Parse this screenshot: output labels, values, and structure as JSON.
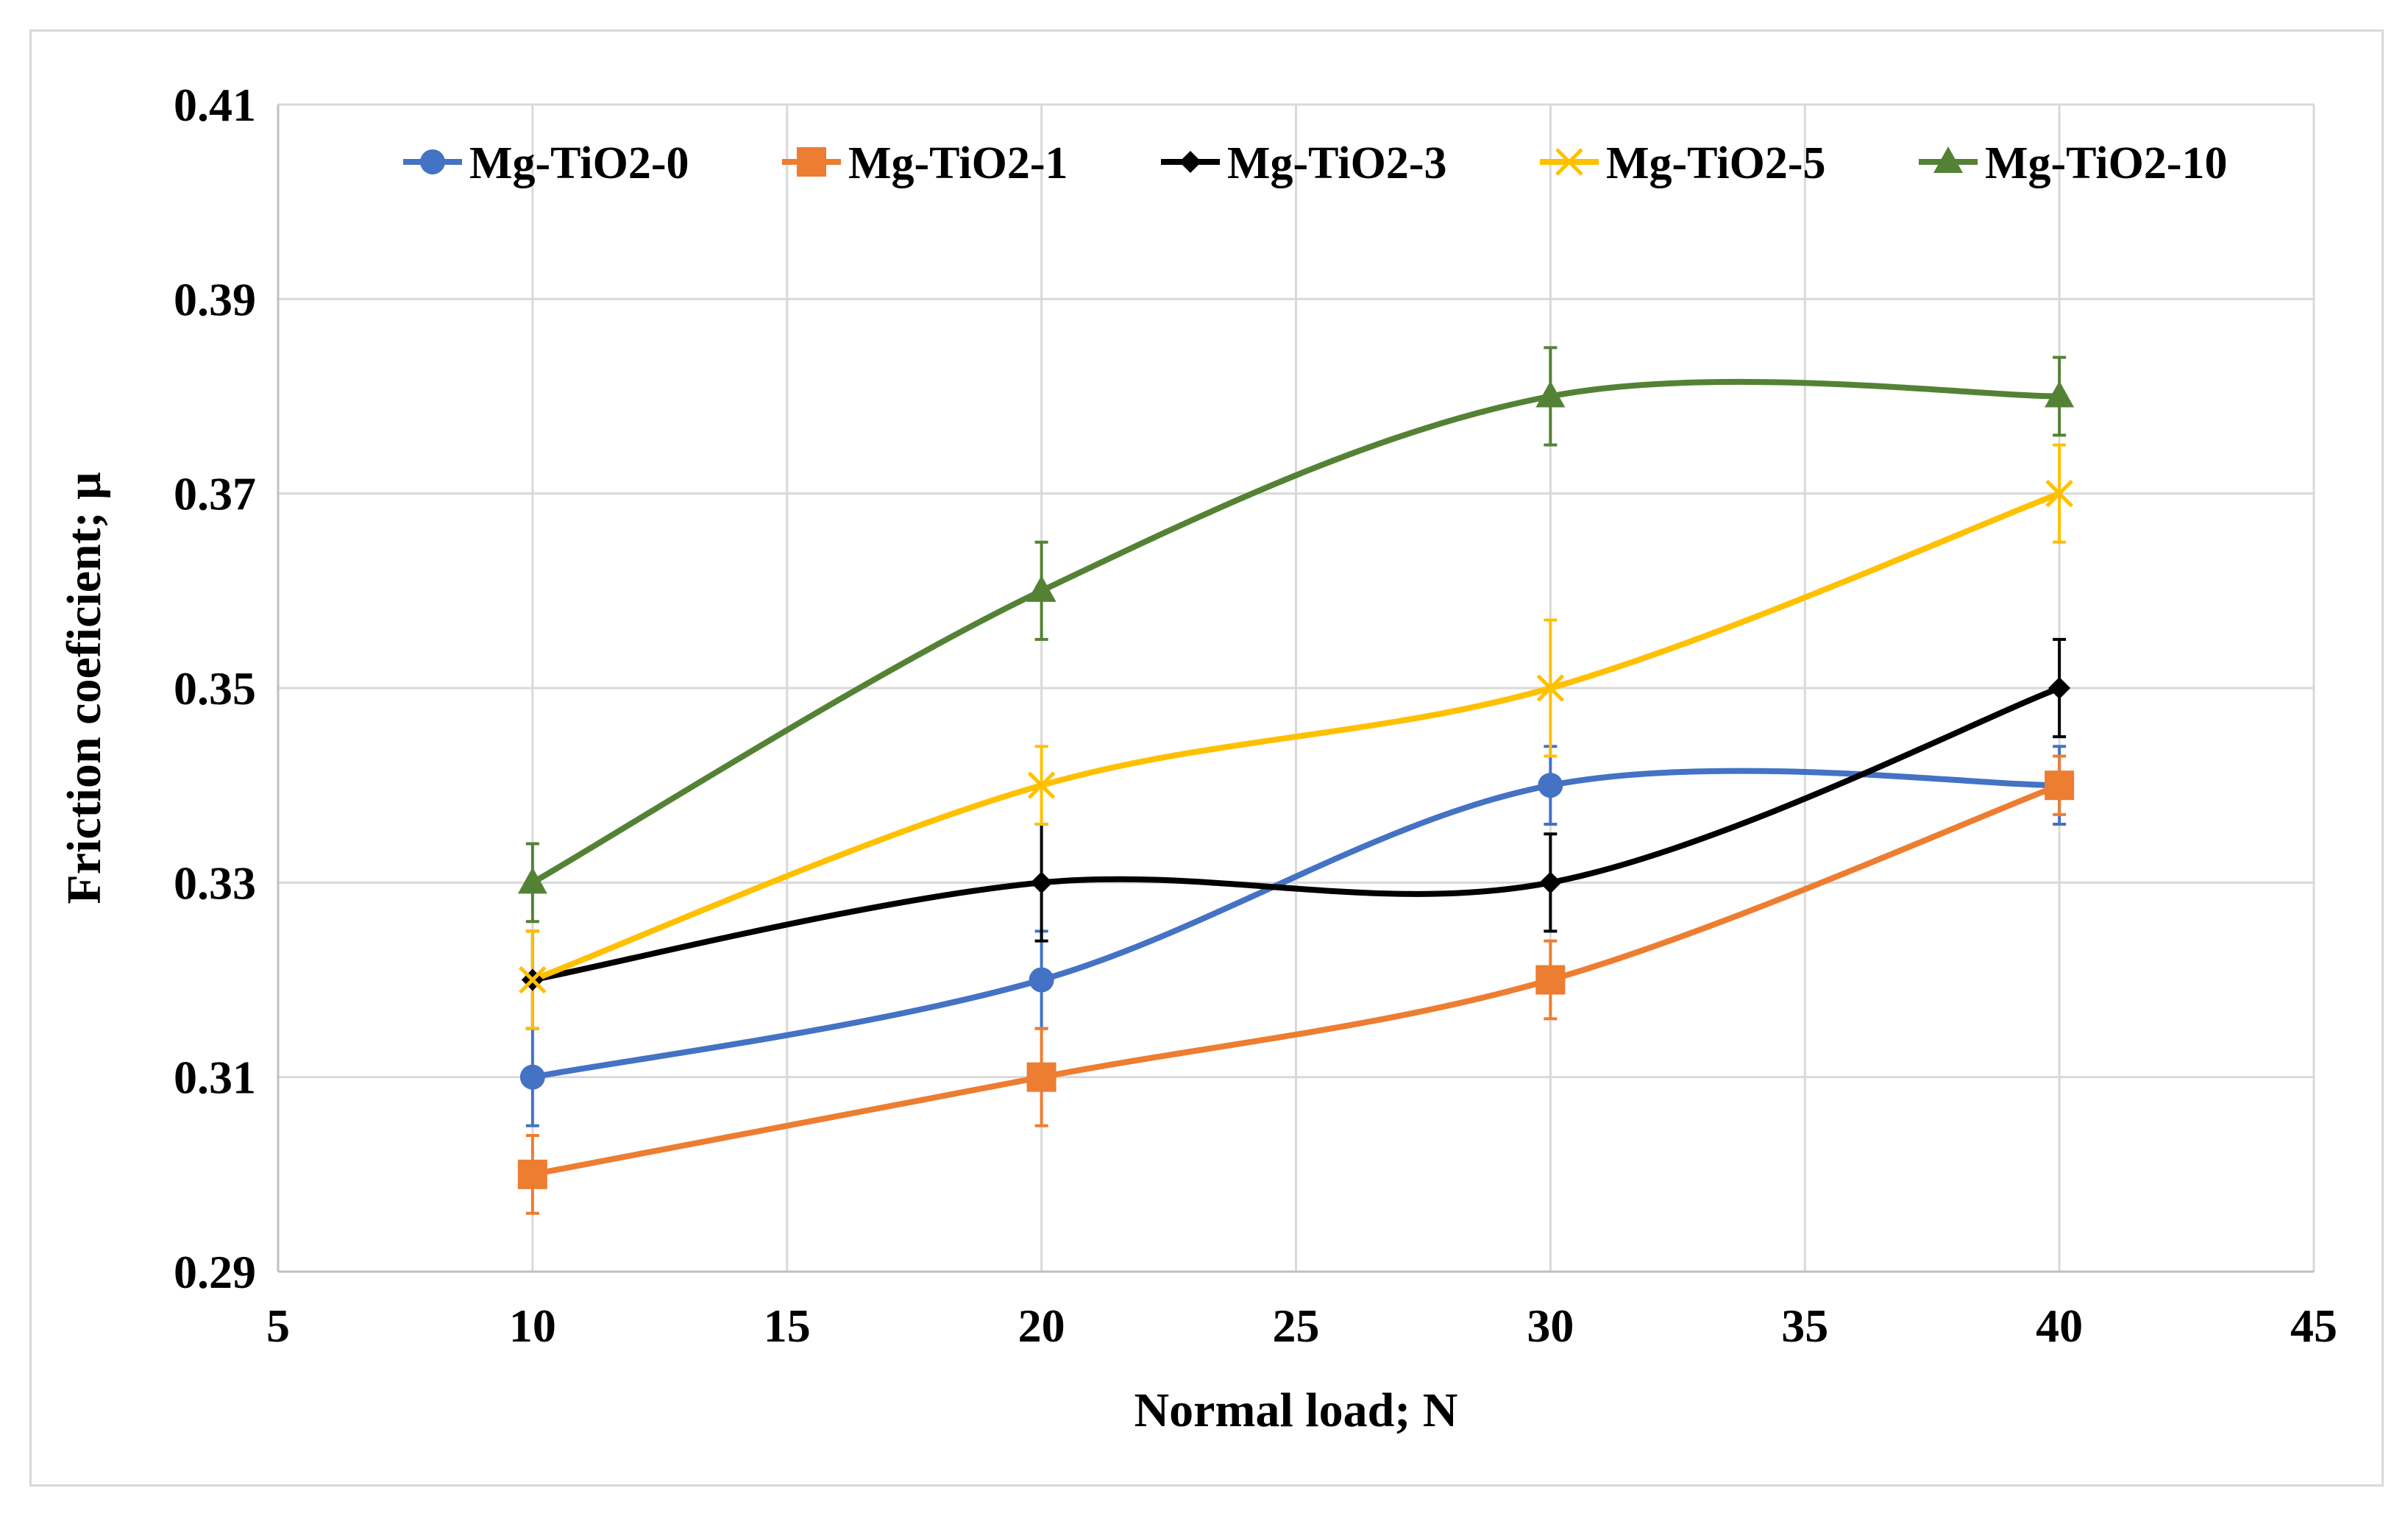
{
  "chart_data": {
    "type": "line",
    "title": "",
    "xlabel": "Normal load; N",
    "ylabel": "Friction coeficient; μ",
    "xlim": [
      5,
      45
    ],
    "ylim": [
      0.29,
      0.41
    ],
    "xticks": [
      5,
      10,
      15,
      20,
      25,
      30,
      35,
      40,
      45
    ],
    "yticks": [
      0.29,
      0.31,
      0.33,
      0.35,
      0.37,
      0.39,
      0.41
    ],
    "xtick_labels": [
      "5",
      "10",
      "15",
      "20",
      "25",
      "30",
      "35",
      "40",
      "45"
    ],
    "ytick_labels": [
      "0.29",
      "0.31",
      "0.33",
      "0.35",
      "0.37",
      "0.39",
      "0.41"
    ],
    "grid": true,
    "legend_position": "top",
    "x": [
      10,
      20,
      30,
      40
    ],
    "series": [
      {
        "name": "Mg-TiO2-0",
        "color": "#4472C4",
        "marker": "circle",
        "values": [
          0.31,
          0.32,
          0.34,
          0.34
        ],
        "errors": [
          0.005,
          0.005,
          0.004,
          0.004
        ]
      },
      {
        "name": "Mg-TiO2-1",
        "color": "#ED7D31",
        "marker": "square",
        "values": [
          0.3,
          0.31,
          0.32,
          0.34
        ],
        "errors": [
          0.004,
          0.005,
          0.004,
          0.003
        ]
      },
      {
        "name": "Mg-TiO2-3",
        "color": "#000000",
        "marker": "diamond",
        "values": [
          0.32,
          0.33,
          0.33,
          0.35
        ],
        "errors": [
          0.005,
          0.006,
          0.005,
          0.005
        ]
      },
      {
        "name": "Mg-TiO2-5",
        "color": "#FFC000",
        "marker": "x",
        "values": [
          0.32,
          0.34,
          0.35,
          0.37
        ],
        "errors": [
          0.005,
          0.004,
          0.007,
          0.005
        ]
      },
      {
        "name": "Mg-TiO2-10",
        "color": "#548235",
        "marker": "triangle",
        "values": [
          0.33,
          0.36,
          0.38,
          0.38
        ],
        "errors": [
          0.004,
          0.005,
          0.005,
          0.004
        ]
      }
    ]
  }
}
